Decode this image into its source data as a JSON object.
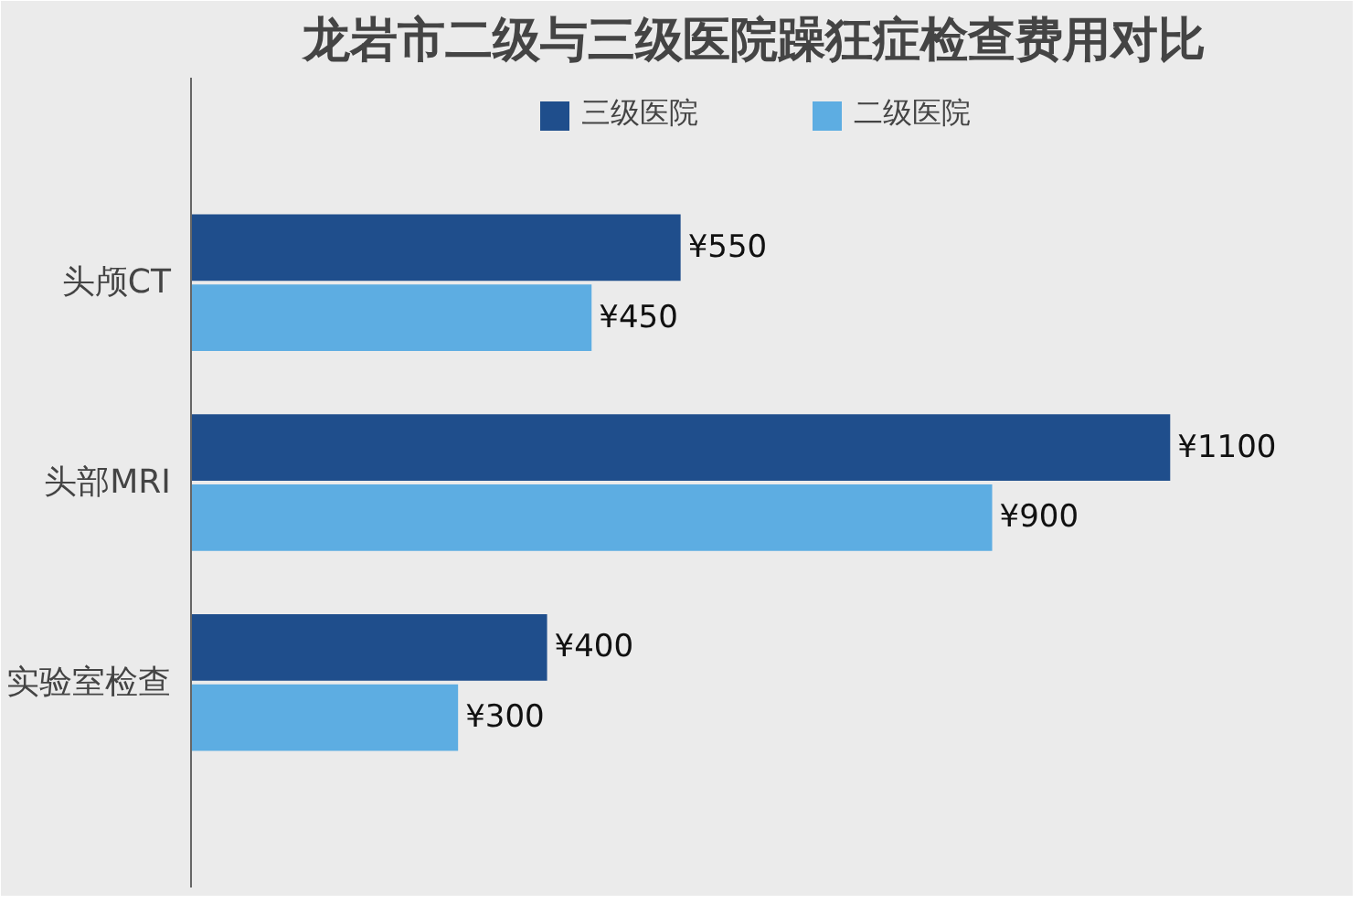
{
  "chart_data": {
    "type": "bar",
    "orientation": "horizontal",
    "title": "龙岩市二级与三级医院躁狂症检查费用对比",
    "categories": [
      "头颅CT",
      "头部MRI",
      "实验室检查"
    ],
    "series": [
      {
        "name": "三级医院",
        "color": "#1f4e8c",
        "values": [
          550,
          1100,
          400
        ],
        "value_labels": [
          "¥550",
          "¥1100",
          "¥400"
        ]
      },
      {
        "name": "二级医院",
        "color": "#5dade2",
        "values": [
          450,
          900,
          300
        ],
        "value_labels": [
          "¥450",
          "¥900",
          "¥300"
        ]
      }
    ],
    "legend": "top"
  }
}
